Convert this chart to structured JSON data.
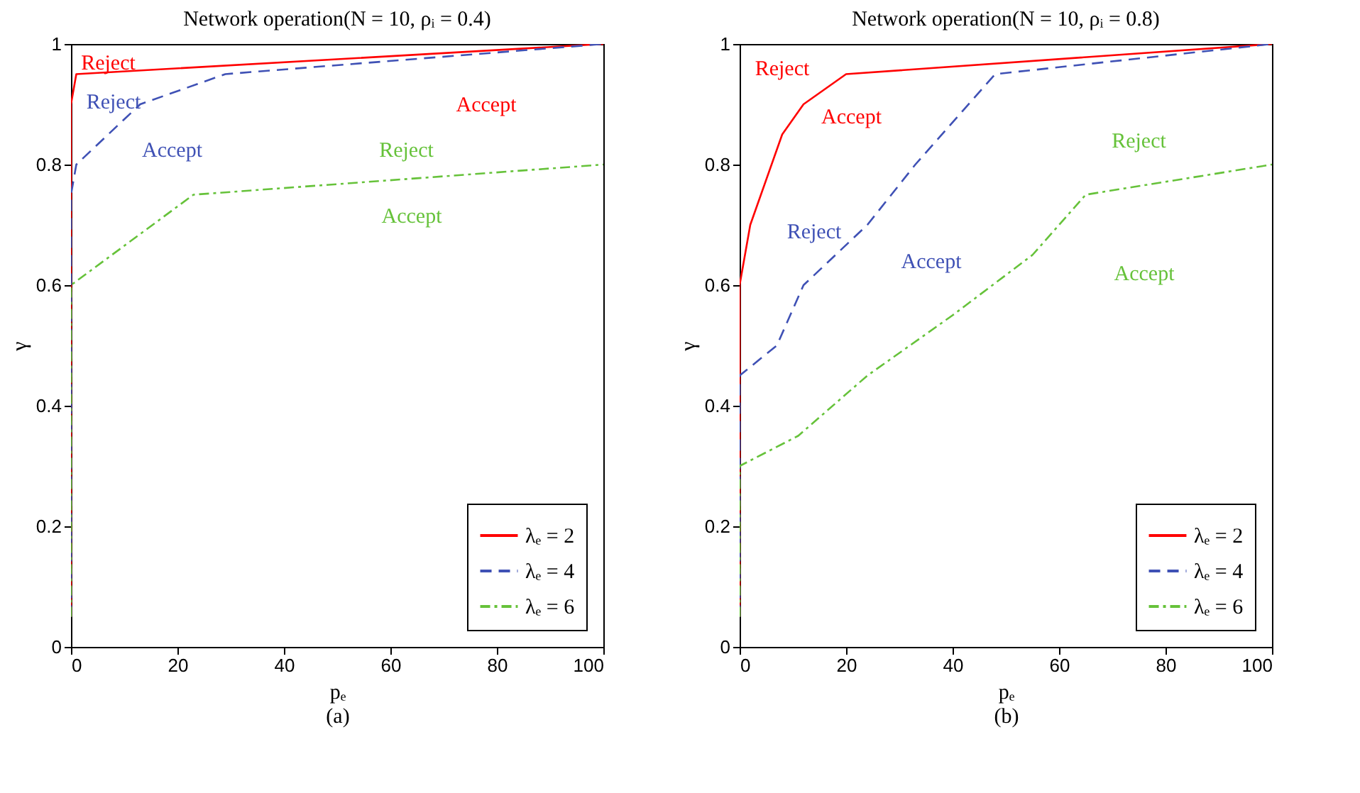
{
  "chart_data": [
    {
      "type": "line",
      "title": "Network operation(N = 10, ρᵢ = 0.4)",
      "xlabel": "pₑ",
      "ylabel": "γ",
      "xlim": [
        0,
        100
      ],
      "xticks": [
        0,
        20,
        40,
        60,
        80,
        100
      ],
      "ylim": [
        0,
        1
      ],
      "yticks": [
        0,
        0.2,
        0.4,
        0.6,
        0.8,
        1
      ],
      "grid": false,
      "legend": "bottom right",
      "series": [
        {
          "name": "λₑ = 2",
          "color": "#ff0000",
          "line_style": "solid",
          "x": [
            0,
            0,
            1,
            100
          ],
          "values": [
            0.05,
            0.9,
            0.95,
            1
          ]
        },
        {
          "name": "λₑ = 4",
          "color": "#3f51b5",
          "line_style": "dashed",
          "x": [
            0,
            0,
            1,
            13,
            29,
            100
          ],
          "values": [
            0.05,
            0.75,
            0.8,
            0.9,
            0.95,
            1
          ]
        },
        {
          "name": "λₑ = 6",
          "color": "#66c23a",
          "line_style": "dashdot",
          "x": [
            0,
            0,
            23,
            100
          ],
          "values": [
            0.05,
            0.6,
            0.75,
            0.8
          ]
        }
      ],
      "annotations": [
        "Reject",
        "Accept",
        "Reject",
        "Accept",
        "Reject",
        "Accept",
        "(a)"
      ]
    },
    {
      "type": "line",
      "title": "Network operation(N = 10, ρᵢ = 0.8)",
      "xlabel": "pₑ",
      "ylabel": "γ",
      "xlim": [
        0,
        100
      ],
      "xticks": [
        0,
        20,
        40,
        60,
        80,
        100
      ],
      "ylim": [
        0,
        1
      ],
      "yticks": [
        0,
        0.2,
        0.4,
        0.6,
        0.8,
        1
      ],
      "grid": false,
      "legend": "bottom right",
      "series": [
        {
          "name": "λₑ = 2",
          "color": "#ff0000",
          "line_style": "solid",
          "x": [
            0,
            0,
            2,
            8,
            12,
            20,
            100
          ],
          "values": [
            0.05,
            0.6,
            0.7,
            0.85,
            0.9,
            0.95,
            1
          ]
        },
        {
          "name": "λₑ = 4",
          "color": "#3f51b5",
          "line_style": "dashed",
          "x": [
            0,
            0,
            7,
            12,
            24,
            33,
            48,
            100
          ],
          "values": [
            0.05,
            0.45,
            0.5,
            0.6,
            0.7,
            0.8,
            0.95,
            1
          ]
        },
        {
          "name": "λₑ = 6",
          "color": "#66c23a",
          "line_style": "dashdot",
          "x": [
            0,
            0,
            11,
            24,
            40,
            55,
            65,
            100
          ],
          "values": [
            0.05,
            0.3,
            0.35,
            0.45,
            0.55,
            0.65,
            0.75,
            0.8
          ]
        }
      ],
      "annotations": [
        "Reject",
        "Accept",
        "Reject",
        "Accept",
        "Reject",
        "Accept",
        "(b)"
      ]
    }
  ]
}
